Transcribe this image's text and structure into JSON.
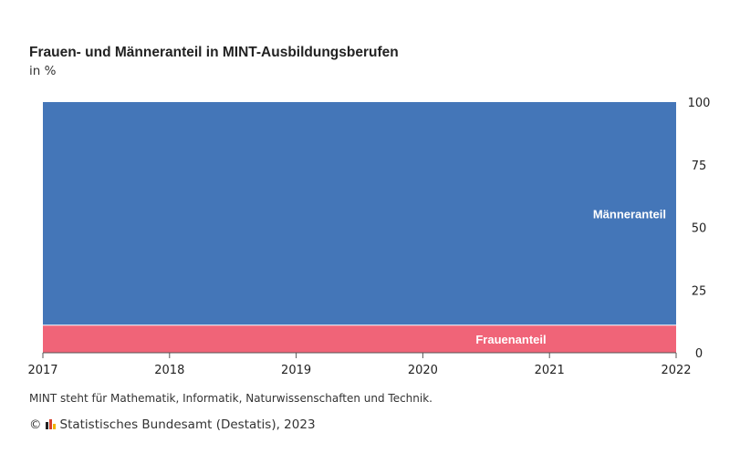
{
  "title": "Frauen- und Männeranteil in MINT-Ausbildungsberufen",
  "subtitle": "in %",
  "note": "MINT steht für Mathematik, Informatik, Naturwissenschaften und Technik.",
  "source": {
    "copyright_symbol": "©",
    "logo_icon": "destatis-logo-icon",
    "text": "Statistisches Bundesamt (Destatis), 2023"
  },
  "colors": {
    "frauen": "#f06478",
    "maenner": "#4476b8"
  },
  "chart_data": {
    "type": "area",
    "stacked": true,
    "x": [
      "2017",
      "2018",
      "2019",
      "2020",
      "2021",
      "2022"
    ],
    "series": [
      {
        "name": "Frauenanteil",
        "values": [
          11,
          11,
          11,
          11,
          11,
          11
        ]
      },
      {
        "name": "Männeranteil",
        "values": [
          89,
          89,
          89,
          89,
          89,
          89
        ]
      }
    ],
    "y_ticks": [
      0,
      25,
      50,
      75,
      100
    ],
    "ylim": [
      0,
      100
    ],
    "y_axis_side": "right",
    "grid": false,
    "legend": "labels inside areas"
  }
}
